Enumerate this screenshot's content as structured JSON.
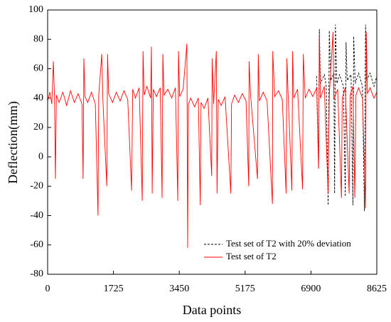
{
  "chart_data": {
    "type": "line",
    "x_label": "Data points",
    "y_label": "Deflection(mm)",
    "xlim": [
      0,
      8625
    ],
    "ylim": [
      -80,
      100
    ],
    "xticks": [
      0,
      1725,
      3450,
      5175,
      6900,
      8625
    ],
    "yticks": [
      -80,
      -60,
      -40,
      -20,
      0,
      20,
      40,
      60,
      80,
      100
    ],
    "legend_position": "lower right",
    "series": [
      {
        "name": "Test set of T2 with 20% deviation",
        "color": "#000000",
        "dashed": true,
        "x": [
          7050,
          7100,
          7120,
          7150,
          7250,
          7300,
          7350,
          7380,
          7420,
          7500,
          7520,
          7540,
          7580,
          7650,
          7750,
          7800,
          7820,
          7850,
          7950,
          8000,
          8020,
          8060,
          8150,
          8250,
          8300,
          8330,
          8360,
          8450,
          8550,
          8625
        ],
        "values": [
          55,
          -8,
          87,
          50,
          56,
          48,
          -33,
          86,
          52,
          57,
          -25,
          90,
          50,
          56,
          48,
          -27,
          78,
          52,
          56,
          -33,
          82,
          50,
          57,
          48,
          -37,
          90,
          52,
          57,
          48,
          55
        ]
      },
      {
        "name": "Test set of T2",
        "color": "#ff0000",
        "dashed": false,
        "x": [
          0,
          60,
          110,
          150,
          180,
          205,
          230,
          300,
          400,
          500,
          600,
          700,
          800,
          900,
          930,
          950,
          980,
          1050,
          1150,
          1250,
          1320,
          1340,
          1420,
          1450,
          1550,
          1570,
          1600,
          1700,
          1800,
          1900,
          2000,
          2100,
          2200,
          2230,
          2300,
          2400,
          2480,
          2500,
          2530,
          2600,
          2700,
          2720,
          2740,
          2770,
          2850,
          2950,
          3000,
          3020,
          3050,
          3150,
          3250,
          3350,
          3410,
          3430,
          3460,
          3550,
          3650,
          3670,
          3690,
          3750,
          3850,
          3950,
          4000,
          4020,
          4100,
          4200,
          4300,
          4310,
          4350,
          4420,
          4440,
          4470,
          4550,
          4650,
          4800,
          4820,
          4900,
          5000,
          5100,
          5200,
          5270,
          5280,
          5320,
          5500,
          5520,
          5550,
          5650,
          5750,
          5890,
          5900,
          5950,
          6050,
          6150,
          6250,
          6270,
          6300,
          6400,
          6420,
          6450,
          6550,
          6680,
          6700,
          6750,
          6850,
          6950,
          7050,
          7100,
          7120,
          7150,
          7250,
          7350,
          7380,
          7480,
          7500,
          7600,
          7700,
          7720,
          7800,
          7900,
          7930,
          8000,
          8050,
          8080,
          8150,
          8250,
          8330,
          8350,
          8380,
          8450,
          8550,
          8625
        ],
        "values": [
          38,
          44,
          36,
          65,
          40,
          -15,
          42,
          37,
          44,
          35,
          45,
          37,
          43,
          36,
          -15,
          67,
          41,
          37,
          44,
          36,
          -40,
          42,
          70,
          38,
          -20,
          70,
          43,
          37,
          44,
          38,
          45,
          39,
          -23,
          46,
          40,
          47,
          -30,
          72,
          42,
          48,
          40,
          75,
          -25,
          46,
          41,
          47,
          -28,
          70,
          42,
          46,
          40,
          47,
          -30,
          72,
          41,
          46,
          77,
          -62,
          36,
          40,
          34,
          40,
          -33,
          37,
          33,
          40,
          -13,
          67,
          36,
          72,
          -25,
          39,
          35,
          41,
          -25,
          36,
          42,
          37,
          43,
          38,
          -20,
          65,
          41,
          -15,
          70,
          38,
          44,
          38,
          -32,
          72,
          41,
          45,
          39,
          -25,
          67,
          44,
          -23,
          72,
          40,
          46,
          -22,
          70,
          40,
          46,
          41,
          47,
          -8,
          83,
          40,
          48,
          -25,
          42,
          85,
          39,
          46,
          -28,
          40,
          47,
          -25,
          42,
          48,
          -28,
          42,
          47,
          40,
          -35,
          85,
          43,
          47,
          40,
          44
        ]
      }
    ]
  }
}
